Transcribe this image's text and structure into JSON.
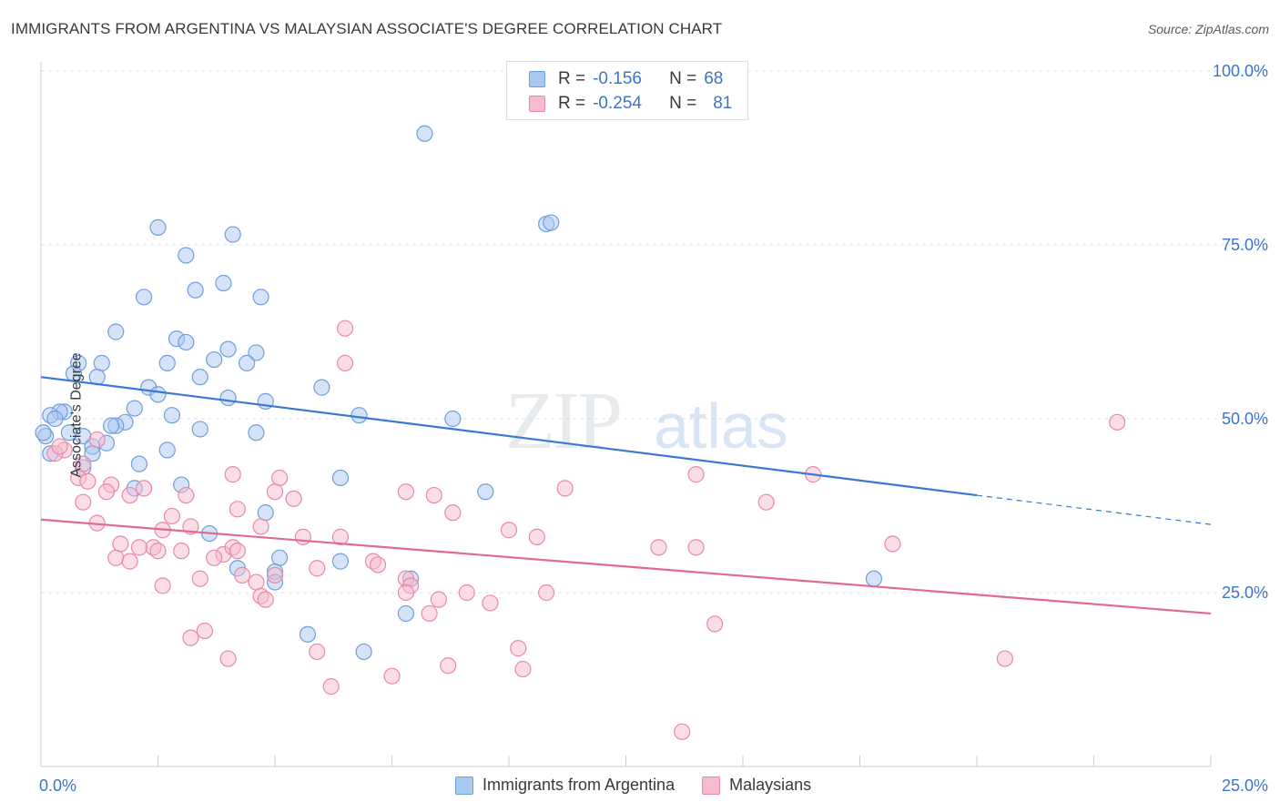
{
  "title": "IMMIGRANTS FROM ARGENTINA VS MALAYSIAN ASSOCIATE'S DEGREE CORRELATION CHART",
  "source": "Source: ZipAtlas.com",
  "watermark": "ZIPatlas",
  "colors": {
    "blue_fill": "#a9c8f0",
    "blue_stroke": "#6f9fdc",
    "blue_line": "#3a78d4",
    "pink_fill": "#f6bccd",
    "pink_stroke": "#e88aa8",
    "pink_line": "#e06a93",
    "tick_text": "#3d74c9"
  },
  "legend": {
    "rows": [
      {
        "r_label": "R =",
        "r_value": "-0.156",
        "n_label": "N =",
        "n_value": "68"
      },
      {
        "r_label": "R =",
        "r_value": "-0.254",
        "n_label": "N =",
        "n_value": "81"
      }
    ]
  },
  "chart_data": {
    "type": "scatter",
    "title": "IMMIGRANTS FROM ARGENTINA VS MALAYSIAN ASSOCIATE'S DEGREE CORRELATION CHART",
    "xlabel": "",
    "ylabel": "Associate's Degree",
    "xlim": [
      0,
      25
    ],
    "ylim": [
      0,
      100
    ],
    "x_tick_labels": [
      "0.0%",
      "25.0%"
    ],
    "y_tick_labels": [
      "100.0%",
      "75.0%",
      "50.0%",
      "25.0%"
    ],
    "y_ticks": [
      100,
      75,
      50,
      25
    ],
    "grid": true,
    "series": [
      {
        "name": "Immigrants from Argentina",
        "color": "blue",
        "trend": {
          "x0": 0,
          "y0": 56.0,
          "x1": 20,
          "y1": 39.0,
          "dash_to_x": 25,
          "dash_to_y": 34.8
        },
        "points": [
          [
            8.2,
            91.0
          ],
          [
            10.8,
            78.0
          ],
          [
            10.9,
            78.2
          ],
          [
            2.5,
            77.5
          ],
          [
            4.1,
            76.5
          ],
          [
            3.1,
            73.5
          ],
          [
            3.3,
            68.5
          ],
          [
            3.9,
            69.5
          ],
          [
            2.2,
            67.5
          ],
          [
            4.7,
            67.5
          ],
          [
            1.6,
            62.5
          ],
          [
            2.9,
            61.5
          ],
          [
            3.1,
            61.0
          ],
          [
            4.0,
            60.0
          ],
          [
            4.6,
            59.5
          ],
          [
            3.7,
            58.5
          ],
          [
            4.4,
            58.0
          ],
          [
            0.8,
            58.0
          ],
          [
            1.3,
            58.0
          ],
          [
            2.7,
            58.0
          ],
          [
            0.7,
            56.5
          ],
          [
            1.2,
            56.0
          ],
          [
            3.4,
            56.0
          ],
          [
            2.3,
            54.5
          ],
          [
            2.5,
            53.5
          ],
          [
            4.0,
            53.0
          ],
          [
            4.8,
            52.5
          ],
          [
            6.0,
            54.5
          ],
          [
            2.0,
            51.5
          ],
          [
            2.8,
            50.5
          ],
          [
            6.8,
            50.5
          ],
          [
            0.5,
            51.0
          ],
          [
            0.4,
            51.0
          ],
          [
            0.2,
            50.5
          ],
          [
            1.8,
            49.5
          ],
          [
            1.6,
            49.0
          ],
          [
            3.4,
            48.5
          ],
          [
            4.6,
            48.0
          ],
          [
            0.6,
            48.0
          ],
          [
            0.9,
            47.5
          ],
          [
            0.1,
            47.5
          ],
          [
            1.4,
            46.5
          ],
          [
            1.1,
            46.0
          ],
          [
            2.7,
            45.5
          ],
          [
            1.1,
            45.0
          ],
          [
            2.1,
            43.5
          ],
          [
            0.9,
            43.0
          ],
          [
            0.2,
            45.0
          ],
          [
            6.4,
            41.5
          ],
          [
            9.5,
            39.5
          ],
          [
            3.0,
            40.5
          ],
          [
            2.0,
            40.0
          ],
          [
            4.8,
            36.5
          ],
          [
            3.6,
            33.5
          ],
          [
            5.1,
            30.0
          ],
          [
            6.4,
            29.5
          ],
          [
            4.2,
            28.5
          ],
          [
            5.0,
            28.0
          ],
          [
            7.9,
            27.0
          ],
          [
            5.0,
            26.5
          ],
          [
            17.8,
            27.0
          ],
          [
            7.8,
            22.0
          ],
          [
            5.7,
            19.0
          ],
          [
            6.9,
            16.5
          ],
          [
            8.8,
            50.0
          ],
          [
            0.3,
            50.0
          ],
          [
            1.5,
            49.0
          ],
          [
            0.05,
            48.0
          ]
        ]
      },
      {
        "name": "Malaysians",
        "color": "pink",
        "trend": {
          "x0": 0,
          "y0": 35.5,
          "x1": 25,
          "y1": 22.0
        },
        "points": [
          [
            6.5,
            63.0
          ],
          [
            6.5,
            58.0
          ],
          [
            1.2,
            47.0
          ],
          [
            0.5,
            45.5
          ],
          [
            0.3,
            45.0
          ],
          [
            0.9,
            43.5
          ],
          [
            0.8,
            41.5
          ],
          [
            1.0,
            41.0
          ],
          [
            4.1,
            42.0
          ],
          [
            5.1,
            41.5
          ],
          [
            1.5,
            40.5
          ],
          [
            2.2,
            40.0
          ],
          [
            1.4,
            39.5
          ],
          [
            1.9,
            39.0
          ],
          [
            3.1,
            39.0
          ],
          [
            5.0,
            39.5
          ],
          [
            5.4,
            38.5
          ],
          [
            7.8,
            39.5
          ],
          [
            8.4,
            39.0
          ],
          [
            11.2,
            40.0
          ],
          [
            14.0,
            42.0
          ],
          [
            16.5,
            42.0
          ],
          [
            15.5,
            38.0
          ],
          [
            0.9,
            38.0
          ],
          [
            4.2,
            37.0
          ],
          [
            2.8,
            36.0
          ],
          [
            1.2,
            35.0
          ],
          [
            3.2,
            34.5
          ],
          [
            4.7,
            34.5
          ],
          [
            2.6,
            34.0
          ],
          [
            5.6,
            33.0
          ],
          [
            10.0,
            34.0
          ],
          [
            10.6,
            33.0
          ],
          [
            1.7,
            32.0
          ],
          [
            2.4,
            31.5
          ],
          [
            2.1,
            31.5
          ],
          [
            2.5,
            31.0
          ],
          [
            3.0,
            31.0
          ],
          [
            3.9,
            30.5
          ],
          [
            4.1,
            31.5
          ],
          [
            4.2,
            31.0
          ],
          [
            3.7,
            30.0
          ],
          [
            1.6,
            30.0
          ],
          [
            1.9,
            29.5
          ],
          [
            7.1,
            29.5
          ],
          [
            7.2,
            29.0
          ],
          [
            5.9,
            28.5
          ],
          [
            14.0,
            31.5
          ],
          [
            13.2,
            31.5
          ],
          [
            18.2,
            32.0
          ],
          [
            3.4,
            27.0
          ],
          [
            2.6,
            26.0
          ],
          [
            4.6,
            26.5
          ],
          [
            5.0,
            27.5
          ],
          [
            7.8,
            27.0
          ],
          [
            7.9,
            26.0
          ],
          [
            7.8,
            25.0
          ],
          [
            9.1,
            25.0
          ],
          [
            10.8,
            25.0
          ],
          [
            8.5,
            24.0
          ],
          [
            4.7,
            24.5
          ],
          [
            4.8,
            24.0
          ],
          [
            9.6,
            23.5
          ],
          [
            8.3,
            22.0
          ],
          [
            14.4,
            20.5
          ],
          [
            3.5,
            19.5
          ],
          [
            3.2,
            18.5
          ],
          [
            5.9,
            16.5
          ],
          [
            10.2,
            17.0
          ],
          [
            4.0,
            15.5
          ],
          [
            8.7,
            14.5
          ],
          [
            10.3,
            14.0
          ],
          [
            7.5,
            13.0
          ],
          [
            6.2,
            11.5
          ],
          [
            13.7,
            5.0
          ],
          [
            20.6,
            15.5
          ],
          [
            23.0,
            49.5
          ],
          [
            8.8,
            36.5
          ],
          [
            6.4,
            33.0
          ],
          [
            4.3,
            27.5
          ],
          [
            0.4,
            46.0
          ]
        ]
      }
    ]
  },
  "bottom_legend": [
    {
      "label": "Immigrants from Argentina"
    },
    {
      "label": "Malaysians"
    }
  ]
}
